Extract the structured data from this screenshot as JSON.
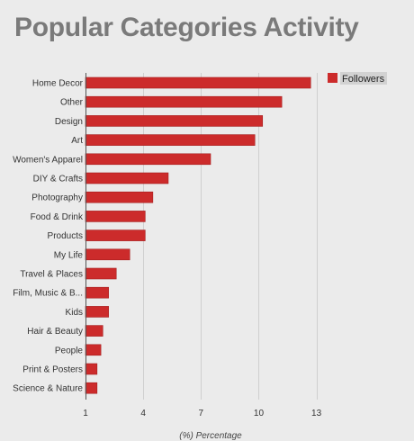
{
  "colors": {
    "bar": "#cc2b2b",
    "bar_stroke": "#a61e1e",
    "title": "#7a7a7a",
    "gridline": "#cfcfcf",
    "axis": "#555555",
    "legend_highlight": "#d2d2d2"
  },
  "chart_data": {
    "type": "bar",
    "orientation": "horizontal",
    "title": "Popular Categories Activity",
    "xlabel": "(%) Percentage",
    "ylabel": "",
    "xlim": [
      1,
      14
    ],
    "xticks": [
      1,
      4,
      7,
      10,
      13
    ],
    "grid": true,
    "legend_position": "top-right",
    "categories": [
      "Home Decor",
      "Other",
      "Design",
      "Art",
      "Women's Apparel",
      "DIY & Crafts",
      "Photography",
      "Food & Drink",
      "Products",
      "My Life",
      "Travel & Places",
      "Film, Music & B...",
      "Kids",
      "Hair & Beauty",
      "People",
      "Print & Posters",
      "Science & Nature"
    ],
    "series": [
      {
        "name": "Followers",
        "values": [
          12.7,
          11.2,
          10.2,
          9.8,
          7.5,
          5.3,
          4.5,
          4.1,
          4.1,
          3.3,
          2.6,
          2.2,
          2.2,
          1.9,
          1.8,
          1.6,
          1.6
        ]
      }
    ]
  }
}
